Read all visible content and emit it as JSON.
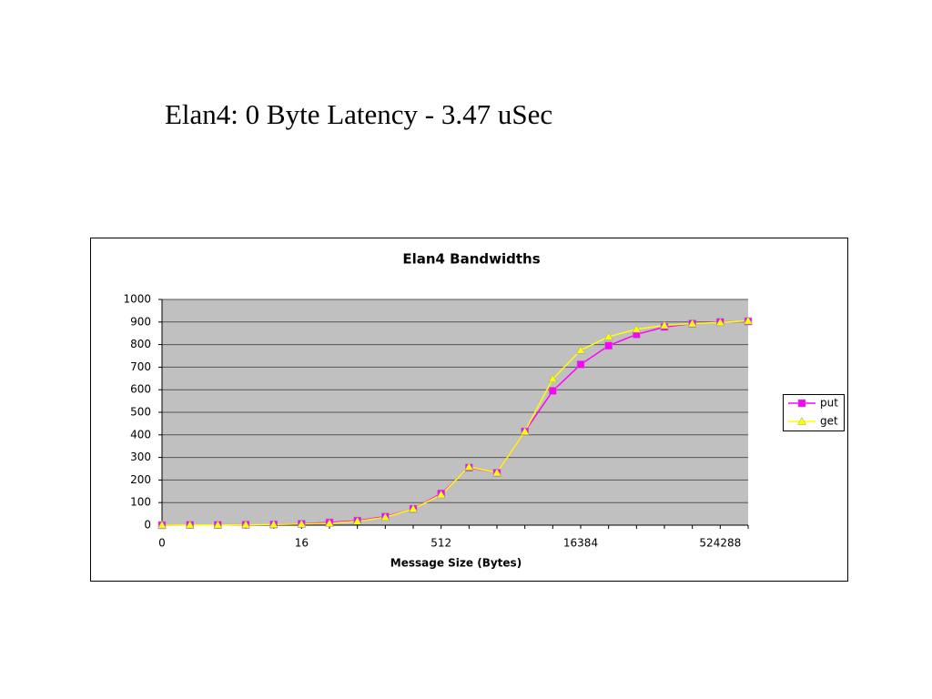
{
  "heading": "Elan4: 0 Byte Latency - 3.47 uSec",
  "chart_data": {
    "type": "line",
    "title": "Elan4 Bandwidths",
    "x_label": "Message Size (Bytes)",
    "categories": [
      "0",
      null,
      null,
      null,
      null,
      "16",
      null,
      null,
      null,
      null,
      "512",
      null,
      null,
      null,
      null,
      "16384",
      null,
      null,
      null,
      null,
      "524288",
      null
    ],
    "series": [
      {
        "name": "put",
        "color": "#ff00ff",
        "marker": "square",
        "values": [
          0,
          1,
          1,
          2,
          3,
          6,
          12,
          20,
          38,
          72,
          140,
          255,
          232,
          415,
          595,
          712,
          795,
          845,
          878,
          893,
          900,
          903
        ]
      },
      {
        "name": "get",
        "color": "#ffff00",
        "marker": "triangle",
        "values": [
          0,
          1,
          1,
          2,
          3,
          5,
          8,
          17,
          35,
          72,
          135,
          258,
          232,
          415,
          648,
          775,
          835,
          868,
          885,
          893,
          898,
          905
        ]
      }
    ],
    "ylim": [
      0,
      1000
    ],
    "yticks": [
      0,
      100,
      200,
      300,
      400,
      500,
      600,
      700,
      800,
      900,
      1000
    ],
    "grid": true,
    "legend": "right",
    "plot_background": "#c0c0c0"
  }
}
